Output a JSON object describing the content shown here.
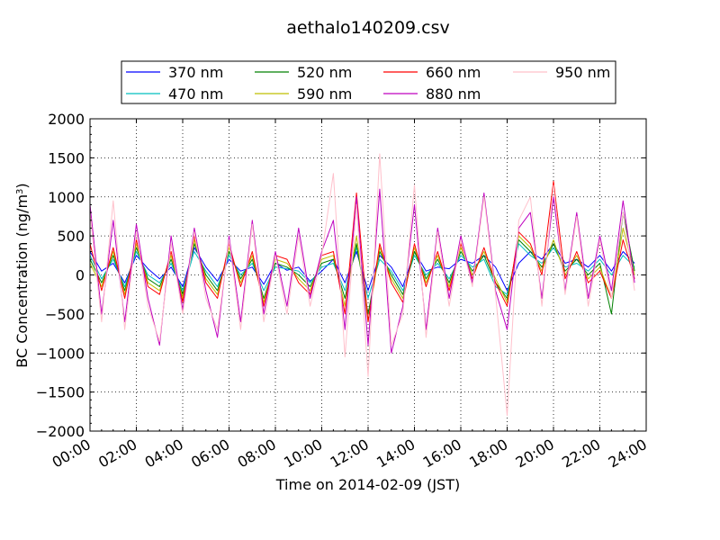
{
  "chart_data": {
    "type": "line",
    "title": "aethalo140209.csv",
    "xlabel": "Time on 2014-02-09 (JST)",
    "ylabel": "BC Concentration (ng/m",
    "ylabel_sup": "3",
    "ylabel_close": ")",
    "xlim": [
      0,
      24
    ],
    "ylim": [
      -2000,
      2000
    ],
    "x_ticks": [
      0,
      2,
      4,
      6,
      8,
      10,
      12,
      14,
      16,
      18,
      20,
      22,
      24
    ],
    "x_tick_labels": [
      "00:00",
      "02:00",
      "04:00",
      "06:00",
      "08:00",
      "10:00",
      "12:00",
      "14:00",
      "16:00",
      "18:00",
      "20:00",
      "22:00",
      "24:00"
    ],
    "y_ticks": [
      -2000,
      -1500,
      -1000,
      -500,
      0,
      500,
      1000,
      1500,
      2000
    ],
    "y_tick_labels": [
      "−2000",
      "−1500",
      "−1000",
      "−500",
      "0",
      "500",
      "1000",
      "1500",
      "2000"
    ],
    "grid": true,
    "legend_placement": "top, above plot",
    "series": [
      {
        "name": "370 nm",
        "color": "#0000ff",
        "x": [
          0,
          0.5,
          1,
          1.5,
          2,
          2.5,
          3,
          3.5,
          4,
          4.5,
          5,
          5.5,
          6,
          6.5,
          7,
          7.5,
          8,
          8.5,
          9,
          9.5,
          10,
          10.5,
          11,
          11.5,
          12,
          12.5,
          13,
          13.5,
          14,
          14.5,
          15,
          15.5,
          16,
          16.5,
          17,
          17.5,
          18,
          18.5,
          19,
          19.5,
          20,
          20.5,
          21,
          21.5,
          22,
          22.5,
          23,
          23.5
        ],
        "y": [
          300,
          50,
          150,
          -100,
          250,
          80,
          -50,
          100,
          -150,
          350,
          100,
          -80,
          200,
          50,
          100,
          -120,
          150,
          60,
          100,
          -80,
          50,
          200,
          -100,
          300,
          -200,
          250,
          100,
          -150,
          300,
          50,
          100,
          80,
          200,
          150,
          250,
          100,
          -200,
          150,
          300,
          200,
          400,
          150,
          200,
          100,
          250,
          50,
          300,
          150
        ]
      },
      {
        "name": "470 nm",
        "color": "#00bfbf",
        "x": [
          0,
          0.5,
          1,
          1.5,
          2,
          2.5,
          3,
          3.5,
          4,
          4.5,
          5,
          5.5,
          6,
          6.5,
          7,
          7.5,
          8,
          8.5,
          9,
          9.5,
          10,
          10.5,
          11,
          11.5,
          12,
          12.5,
          13,
          13.5,
          14,
          14.5,
          15,
          15.5,
          16,
          16.5,
          17,
          17.5,
          18,
          18.5,
          19,
          19.5,
          20,
          20.5,
          21,
          21.5,
          22,
          22.5,
          23,
          23.5
        ],
        "y": [
          250,
          -50,
          200,
          -150,
          300,
          0,
          -100,
          150,
          -200,
          300,
          50,
          -150,
          250,
          0,
          150,
          -200,
          100,
          80,
          50,
          -100,
          100,
          150,
          -200,
          350,
          -300,
          200,
          50,
          -200,
          250,
          0,
          150,
          -50,
          250,
          100,
          200,
          -150,
          -250,
          400,
          250,
          150,
          350,
          100,
          150,
          50,
          200,
          0,
          250,
          100
        ]
      },
      {
        "name": "520 nm",
        "color": "#008000",
        "x": [
          0,
          0.5,
          1,
          1.5,
          2,
          2.5,
          3,
          3.5,
          4,
          4.5,
          5,
          5.5,
          6,
          6.5,
          7,
          7.5,
          8,
          8.5,
          9,
          9.5,
          10,
          10.5,
          11,
          11.5,
          12,
          12.5,
          13,
          13.5,
          14,
          14.5,
          15,
          15.5,
          16,
          16.5,
          17,
          17.5,
          18,
          18.5,
          19,
          19.5,
          20,
          20.5,
          21,
          21.5,
          22,
          22.5,
          23,
          23.5
        ],
        "y": [
          200,
          -100,
          250,
          -200,
          350,
          -50,
          -150,
          200,
          -250,
          400,
          0,
          -200,
          300,
          -50,
          200,
          -300,
          150,
          100,
          0,
          -150,
          150,
          200,
          -300,
          400,
          -500,
          300,
          0,
          -250,
          300,
          -50,
          200,
          -100,
          300,
          50,
          250,
          -100,
          -300,
          450,
          300,
          100,
          400,
          50,
          200,
          0,
          150,
          -500,
          800,
          50
        ]
      },
      {
        "name": "590 nm",
        "color": "#bfbf00",
        "x": [
          0,
          0.5,
          1,
          1.5,
          2,
          2.5,
          3,
          3.5,
          4,
          4.5,
          5,
          5.5,
          6,
          6.5,
          7,
          7.5,
          8,
          8.5,
          9,
          9.5,
          10,
          10.5,
          11,
          11.5,
          12,
          12.5,
          13,
          13.5,
          14,
          14.5,
          15,
          15.5,
          16,
          16.5,
          17,
          17.5,
          18,
          18.5,
          19,
          19.5,
          20,
          20.5,
          21,
          21.5,
          22,
          22.5,
          23,
          23.5
        ],
        "y": [
          150,
          -150,
          300,
          -250,
          400,
          -100,
          -200,
          250,
          -300,
          450,
          -50,
          -250,
          350,
          -100,
          250,
          -350,
          200,
          150,
          -50,
          -200,
          200,
          250,
          -400,
          500,
          -600,
          350,
          -50,
          -300,
          350,
          -100,
          250,
          -150,
          350,
          0,
          300,
          -50,
          -350,
          500,
          350,
          50,
          450,
          0,
          250,
          -50,
          100,
          -300,
          600,
          0
        ]
      },
      {
        "name": "660 nm",
        "color": "#ff0000",
        "x": [
          0,
          0.5,
          1,
          1.5,
          2,
          2.5,
          3,
          3.5,
          4,
          4.5,
          5,
          5.5,
          6,
          6.5,
          7,
          7.5,
          8,
          8.5,
          9,
          9.5,
          10,
          10.5,
          11,
          11.5,
          12,
          12.5,
          13,
          13.5,
          14,
          14.5,
          15,
          15.5,
          16,
          16.5,
          17,
          17.5,
          18,
          18.5,
          19,
          19.5,
          20,
          20.5,
          21,
          21.5,
          22,
          22.5,
          23,
          23.5
        ],
        "y": [
          400,
          -200,
          350,
          -300,
          450,
          -150,
          -250,
          300,
          -350,
          500,
          -100,
          -300,
          400,
          -150,
          300,
          -400,
          250,
          200,
          -100,
          -250,
          250,
          300,
          -500,
          1050,
          -600,
          400,
          -100,
          -350,
          400,
          -150,
          300,
          -200,
          400,
          -50,
          350,
          -100,
          -400,
          550,
          400,
          0,
          1200,
          -50,
          300,
          -100,
          50,
          -300,
          450,
          -50
        ]
      },
      {
        "name": "880 nm",
        "color": "#bf00bf",
        "x": [
          0,
          0.5,
          1,
          1.5,
          2,
          2.5,
          3,
          3.5,
          4,
          4.5,
          5,
          5.5,
          6,
          6.5,
          7,
          7.5,
          8,
          8.5,
          9,
          9.5,
          10,
          10.5,
          11,
          11.5,
          12,
          12.5,
          13,
          13.5,
          14,
          14.5,
          15,
          15.5,
          16,
          16.5,
          17,
          17.5,
          18,
          18.5,
          19,
          19.5,
          20,
          20.5,
          21,
          21.5,
          22,
          22.5,
          23,
          23.5
        ],
        "y": [
          900,
          -500,
          700,
          -600,
          650,
          -300,
          -900,
          500,
          -450,
          600,
          -200,
          -800,
          500,
          -600,
          700,
          -500,
          300,
          -400,
          600,
          -300,
          300,
          700,
          -700,
          1000,
          -900,
          1100,
          -1000,
          -400,
          900,
          -700,
          600,
          -300,
          500,
          -100,
          1050,
          -200,
          -700,
          600,
          800,
          -300,
          1000,
          -200,
          800,
          -300,
          500,
          -200,
          950,
          -100
        ]
      },
      {
        "name": "950 nm",
        "color": "#ffc0cb",
        "x": [
          0,
          0.5,
          1,
          1.5,
          2,
          2.5,
          3,
          3.5,
          4,
          4.5,
          5,
          5.5,
          6,
          6.5,
          7,
          7.5,
          8,
          8.5,
          9,
          9.5,
          10,
          10.5,
          11,
          11.5,
          12,
          12.5,
          13,
          13.5,
          14,
          14.5,
          15,
          15.5,
          16,
          16.5,
          17,
          17.5,
          18,
          18.5,
          19,
          19.5,
          20,
          20.5,
          21,
          21.5,
          22,
          22.5,
          23,
          23.5
        ],
        "y": [
          800,
          -600,
          950,
          -700,
          550,
          -400,
          -850,
          400,
          -500,
          550,
          -300,
          -700,
          450,
          -700,
          650,
          -600,
          250,
          -500,
          500,
          -400,
          250,
          1300,
          -1050,
          900,
          -1300,
          1550,
          -900,
          -500,
          1150,
          -800,
          550,
          -400,
          450,
          -150,
          1000,
          -250,
          -1800,
          700,
          1000,
          -400,
          1150,
          -250,
          750,
          -400,
          450,
          -300,
          800,
          -200
        ]
      }
    ]
  }
}
